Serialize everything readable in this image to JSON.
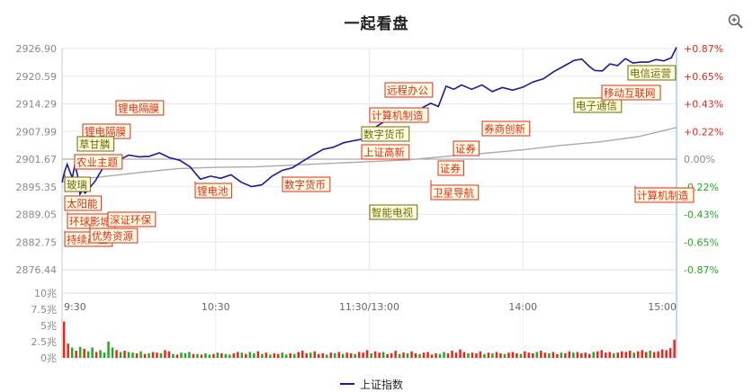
{
  "chart_data": {
    "type": "line",
    "title": "一起看盘",
    "legend_position": "bottom",
    "grid": true,
    "series": [
      {
        "name": "上证指数",
        "color": "#1a1a9c",
        "points": [
          [
            "09:30",
            2896.4
          ],
          [
            "09:31",
            2898.8
          ],
          [
            "09:32",
            2900.5
          ],
          [
            "09:33",
            2898.9
          ],
          [
            "09:34",
            2897.4
          ],
          [
            "09:35",
            2900.4
          ],
          [
            "09:36",
            2898.1
          ],
          [
            "09:37",
            2893.7
          ],
          [
            "09:38",
            2894.6
          ],
          [
            "09:39",
            2893.9
          ],
          [
            "09:41",
            2895.3
          ],
          [
            "09:43",
            2896.7
          ],
          [
            "09:46",
            2899.7
          ],
          [
            "09:48",
            2901.5
          ],
          [
            "09:50",
            2902.6
          ],
          [
            "09:53",
            2901.7
          ],
          [
            "09:56",
            2902.6
          ],
          [
            "10:00",
            2902.2
          ],
          [
            "10:04",
            2902.3
          ],
          [
            "10:08",
            2903.1
          ],
          [
            "10:12",
            2902.0
          ],
          [
            "10:16",
            2901.4
          ],
          [
            "10:20",
            2899.9
          ],
          [
            "10:24",
            2897.1
          ],
          [
            "10:28",
            2897.8
          ],
          [
            "10:32",
            2897.3
          ],
          [
            "10:36",
            2898.1
          ],
          [
            "10:40",
            2896.4
          ],
          [
            "10:44",
            2895.4
          ],
          [
            "10:48",
            2895.8
          ],
          [
            "10:52",
            2897.8
          ],
          [
            "10:56",
            2899.1
          ],
          [
            "11:00",
            2899.7
          ],
          [
            "11:04",
            2901.2
          ],
          [
            "11:08",
            2902.6
          ],
          [
            "11:12",
            2903.9
          ],
          [
            "11:16",
            2904.4
          ],
          [
            "11:20",
            2905.4
          ],
          [
            "11:24",
            2905.9
          ],
          [
            "11:27",
            2906.2
          ],
          [
            "11:30",
            2907.2
          ],
          [
            "13:03",
            2909.2
          ],
          [
            "13:06",
            2910.3
          ],
          [
            "13:09",
            2911.3
          ],
          [
            "13:12",
            2911.3
          ],
          [
            "13:15",
            2912.0
          ],
          [
            "13:18",
            2911.3
          ],
          [
            "13:21",
            2913.5
          ],
          [
            "13:24",
            2914.4
          ],
          [
            "13:27",
            2913.7
          ],
          [
            "13:30",
            2918.3
          ],
          [
            "13:33",
            2917.6
          ],
          [
            "13:36",
            2918.6
          ],
          [
            "13:40",
            2917.6
          ],
          [
            "13:44",
            2918.6
          ],
          [
            "13:48",
            2917.1
          ],
          [
            "13:52",
            2918.0
          ],
          [
            "13:56",
            2917.4
          ],
          [
            "14:00",
            2918.1
          ],
          [
            "14:04",
            2919.3
          ],
          [
            "14:08",
            2920.0
          ],
          [
            "14:12",
            2921.6
          ],
          [
            "14:16",
            2922.9
          ],
          [
            "14:20",
            2924.2
          ],
          [
            "14:23",
            2924.5
          ],
          [
            "14:26",
            2922.8
          ],
          [
            "14:28",
            2921.9
          ],
          [
            "14:31",
            2921.8
          ],
          [
            "14:34",
            2923.4
          ],
          [
            "14:37",
            2923.0
          ],
          [
            "14:40",
            2924.6
          ],
          [
            "14:43",
            2923.6
          ],
          [
            "14:46",
            2923.8
          ],
          [
            "14:49",
            2923.8
          ],
          [
            "14:52",
            2924.4
          ],
          [
            "14:55",
            2924.1
          ],
          [
            "14:58",
            2924.8
          ],
          [
            "15:00",
            2927.2
          ]
        ]
      },
      {
        "name": "",
        "color": "#aaaaaa",
        "points": [
          [
            "09:30",
            2896.4
          ],
          [
            "09:35",
            2897.1
          ],
          [
            "09:45",
            2897.6
          ],
          [
            "10:00",
            2898.6
          ],
          [
            "10:15",
            2899.5
          ],
          [
            "10:30",
            2899.8
          ],
          [
            "10:45",
            2899.9
          ],
          [
            "11:00",
            2900.3
          ],
          [
            "11:15",
            2900.7
          ],
          [
            "11:30",
            2901.1
          ],
          [
            "13:15",
            2901.5
          ],
          [
            "13:30",
            2902.3
          ],
          [
            "13:45",
            2903.0
          ],
          [
            "14:00",
            2903.8
          ],
          [
            "14:15",
            2904.8
          ],
          [
            "14:30",
            2905.6
          ],
          [
            "14:45",
            2906.8
          ],
          [
            "15:00",
            2908.9
          ]
        ]
      }
    ],
    "y_ticks": [
      "2926.90",
      "2920.59",
      "2914.29",
      "2907.99",
      "2901.67",
      "2895.35",
      "2889.05",
      "2882.75",
      "2876.44"
    ],
    "pct_ticks": [
      "+0.87%",
      "+0.65%",
      "+0.43%",
      "+0.22%",
      "0.00%",
      "-0.22%",
      "-0.43%",
      "-0.65%",
      "-0.87%"
    ],
    "ylim": [
      2876.44,
      2926.9
    ],
    "baseline": 2901.67,
    "x_ticks": [
      "9:30",
      "10:30",
      "11:30/13:00",
      "14:00",
      "15:00"
    ],
    "volume": {
      "ticks": [
        "10兆",
        "7.5兆",
        "5兆",
        "2.5兆",
        "0兆"
      ],
      "ylim": [
        0,
        10
      ],
      "up_color": "#e5281d",
      "down_color": "#22aa22",
      "bars": [
        [
          5.6,
          1
        ],
        [
          2.2,
          1
        ],
        [
          1.6,
          0
        ],
        [
          1.1,
          1
        ],
        [
          1.7,
          0
        ],
        [
          1.4,
          1
        ],
        [
          1.0,
          0
        ],
        [
          1.6,
          0
        ],
        [
          0.9,
          1
        ],
        [
          1.2,
          0
        ],
        [
          0.8,
          0
        ],
        [
          2.5,
          0
        ],
        [
          1.6,
          0
        ],
        [
          1.2,
          1
        ],
        [
          0.9,
          0
        ],
        [
          1.1,
          1
        ],
        [
          0.9,
          0
        ],
        [
          0.8,
          0
        ],
        [
          0.7,
          1
        ],
        [
          1.0,
          0
        ],
        [
          0.6,
          1
        ],
        [
          0.7,
          0
        ],
        [
          0.9,
          1
        ],
        [
          0.8,
          1
        ],
        [
          0.7,
          0
        ],
        [
          1.2,
          1
        ],
        [
          1.0,
          1
        ],
        [
          0.6,
          0
        ],
        [
          0.5,
          1
        ],
        [
          0.8,
          0
        ],
        [
          0.7,
          0
        ],
        [
          0.9,
          0
        ],
        [
          0.6,
          1
        ],
        [
          0.6,
          0
        ],
        [
          0.5,
          1
        ],
        [
          0.7,
          0
        ],
        [
          0.5,
          0
        ],
        [
          0.6,
          1
        ],
        [
          0.8,
          0
        ],
        [
          0.7,
          1
        ],
        [
          0.6,
          0
        ],
        [
          0.5,
          0
        ],
        [
          0.7,
          1
        ],
        [
          0.9,
          1
        ],
        [
          0.8,
          0
        ],
        [
          0.6,
          1
        ],
        [
          0.9,
          0
        ],
        [
          0.7,
          0
        ],
        [
          1.0,
          1
        ],
        [
          0.6,
          0
        ],
        [
          0.8,
          1
        ],
        [
          0.5,
          0
        ],
        [
          0.7,
          1
        ],
        [
          0.6,
          1
        ],
        [
          0.8,
          0
        ],
        [
          0.5,
          0
        ],
        [
          0.7,
          1
        ],
        [
          0.6,
          0
        ],
        [
          0.9,
          1
        ],
        [
          1.1,
          1
        ],
        [
          0.7,
          1
        ],
        [
          0.8,
          0
        ],
        [
          1.0,
          1
        ],
        [
          0.6,
          1
        ],
        [
          0.7,
          1
        ],
        [
          0.5,
          0
        ],
        [
          0.8,
          1
        ],
        [
          0.7,
          0
        ],
        [
          0.9,
          1
        ],
        [
          0.6,
          0
        ],
        [
          0.8,
          1
        ],
        [
          0.7,
          1
        ],
        [
          0.6,
          0
        ],
        [
          0.9,
          1
        ],
        [
          0.8,
          1
        ],
        [
          1.2,
          1
        ],
        [
          0.7,
          0
        ],
        [
          1.0,
          1
        ],
        [
          0.8,
          1
        ],
        [
          0.9,
          0
        ],
        [
          0.6,
          1
        ],
        [
          0.7,
          1
        ],
        [
          1.1,
          1
        ],
        [
          0.6,
          0
        ],
        [
          0.8,
          1
        ],
        [
          0.7,
          0
        ],
        [
          1.0,
          1
        ],
        [
          0.7,
          1
        ],
        [
          0.6,
          0
        ],
        [
          0.8,
          1
        ],
        [
          0.9,
          1
        ],
        [
          0.5,
          1
        ],
        [
          0.7,
          1
        ],
        [
          0.6,
          0
        ],
        [
          0.9,
          0
        ],
        [
          0.7,
          1
        ],
        [
          1.1,
          1
        ],
        [
          0.8,
          1
        ],
        [
          1.3,
          1
        ],
        [
          0.9,
          1
        ],
        [
          0.7,
          0
        ],
        [
          0.8,
          1
        ],
        [
          0.7,
          1
        ],
        [
          1.0,
          1
        ],
        [
          0.6,
          0
        ],
        [
          0.8,
          1
        ],
        [
          0.7,
          0
        ],
        [
          0.9,
          1
        ],
        [
          0.7,
          1
        ],
        [
          0.6,
          0
        ],
        [
          0.8,
          1
        ],
        [
          0.9,
          1
        ],
        [
          0.7,
          1
        ],
        [
          0.6,
          0
        ],
        [
          1.0,
          1
        ],
        [
          0.8,
          1
        ],
        [
          0.7,
          1
        ],
        [
          0.9,
          0
        ],
        [
          1.1,
          1
        ],
        [
          0.8,
          1
        ],
        [
          0.7,
          0
        ],
        [
          0.9,
          1
        ],
        [
          0.6,
          1
        ],
        [
          0.8,
          0
        ],
        [
          0.7,
          1
        ],
        [
          1.0,
          1
        ],
        [
          0.8,
          0
        ],
        [
          0.9,
          1
        ],
        [
          0.7,
          1
        ],
        [
          0.8,
          1
        ],
        [
          0.6,
          1
        ],
        [
          0.9,
          0
        ],
        [
          1.0,
          1
        ],
        [
          1.2,
          1
        ],
        [
          0.8,
          1
        ],
        [
          0.9,
          1
        ],
        [
          0.7,
          0
        ],
        [
          0.8,
          1
        ],
        [
          1.0,
          1
        ],
        [
          0.9,
          1
        ],
        [
          1.1,
          1
        ],
        [
          0.8,
          0
        ],
        [
          1.0,
          1
        ],
        [
          1.2,
          1
        ],
        [
          0.9,
          1
        ],
        [
          1.1,
          0
        ],
        [
          0.9,
          1
        ],
        [
          1.0,
          1
        ],
        [
          1.3,
          1
        ],
        [
          1.2,
          1
        ],
        [
          1.5,
          1
        ],
        [
          2.8,
          1
        ]
      ]
    }
  },
  "annotations": [
    {
      "text": "锂电隔膜",
      "time": "09:51",
      "top": "2913.2",
      "boxtop": "112"
    },
    {
      "text": "锂电隔膜",
      "time": "09:38",
      "top": "2907.7",
      "boxtop": "138"
    },
    {
      "text": "草甘膦",
      "time": "09:36",
      "top": "2905.2",
      "boxtop": "152"
    },
    {
      "text": "农业主题",
      "time": "09:35",
      "top": "2902.6",
      "boxtop": "172"
    },
    {
      "text": "玻璃",
      "time": "09:31",
      "top": "2898.6",
      "boxtop": "197"
    },
    {
      "text": "太阳能",
      "time": "09:31",
      "top": "2892.1",
      "boxtop": "218"
    },
    {
      "text": "环球影城",
      "time": "09:32",
      "top": "2889.6",
      "boxtop": "238"
    },
    {
      "text": "持续产业",
      "time": "09:31",
      "top": "2885.3",
      "boxtop": "258"
    },
    {
      "text": "优势资源",
      "time": "09:41",
      "top": "2886.9",
      "boxtop": "254"
    },
    {
      "text": "深证环保",
      "time": "09:48",
      "top": "2889.4",
      "boxtop": "236"
    },
    {
      "text": "锂电池",
      "time": "10:22",
      "top": "2896.6",
      "boxtop": "204"
    },
    {
      "text": "数字货币",
      "time": "10:56",
      "top": "2897.8",
      "boxtop": "197"
    },
    {
      "text": "上证高新",
      "time": "11:27",
      "top": "2903.0",
      "boxtop": "161"
    },
    {
      "text": "数字货币",
      "time": "11:27",
      "top": "2907.3",
      "boxtop": "141"
    },
    {
      "text": "智能电视",
      "time": "11:30",
      "top": "2890.3",
      "boxtop": "228"
    },
    {
      "text": "计算机制造",
      "time": "11:30",
      "top": "2911.8",
      "boxtop": "120"
    },
    {
      "text": "远程办公",
      "time": "13:06",
      "top": "2918.4",
      "boxtop": "92"
    },
    {
      "text": "卫星导航",
      "time": "13:24",
      "top": "2896.9",
      "boxtop": "206"
    },
    {
      "text": "证券",
      "time": "13:27",
      "top": "2900.6",
      "boxtop": "179"
    },
    {
      "text": "证券",
      "time": "13:33",
      "top": "2905.0",
      "boxtop": "157"
    },
    {
      "text": "券商创新",
      "time": "13:44",
      "top": "2909.3",
      "boxtop": "135"
    },
    {
      "text": "电子通信",
      "time": "14:20",
      "top": "2915.0",
      "boxtop": "109"
    },
    {
      "text": "移动互联网",
      "time": "14:31",
      "top": "2917.1",
      "boxtop": "95"
    },
    {
      "text": "电信运营",
      "time": "14:41",
      "top": "2922.0",
      "boxtop": "73"
    },
    {
      "text": "计算机制造",
      "time": "14:44",
      "top": "2895.6",
      "boxtop": "209"
    }
  ],
  "colors": {
    "accent": "#1a1a9c",
    "avg_line": "#aaaaaa",
    "up": "#e5281d",
    "down": "#22aa22",
    "annot_red": "#e5281d",
    "annot_olive": "#6b6b00",
    "annot_bg": "#fffde0"
  }
}
